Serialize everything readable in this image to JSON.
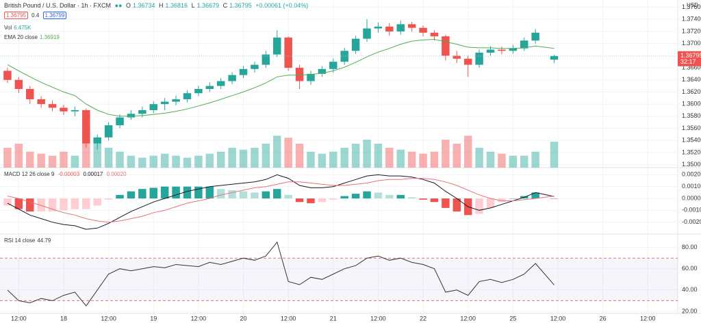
{
  "chart_data": [
    {
      "type": "candlestick",
      "title": "British Pound / U.S. Dollar · 1h · FXCM",
      "ohlc_legend": [
        "O",
        "1.36734",
        "H",
        "1.36816",
        "L",
        "1.36679",
        "C",
        "1.36795",
        "+0.00061 (+0.04%)"
      ],
      "symbol_boxes": [
        "1.36795",
        "0.4",
        "1.36799"
      ],
      "currency": "USD",
      "x": [
        -3,
        0,
        3,
        6,
        9,
        12,
        15,
        18,
        21,
        24,
        27,
        30,
        33,
        36,
        39,
        42,
        45,
        48,
        51,
        54,
        57,
        60,
        63,
        66,
        69,
        72,
        75,
        78,
        81,
        84,
        87,
        90,
        93,
        96,
        99,
        102,
        105,
        108,
        111,
        114,
        117,
        120,
        123,
        126,
        129,
        132,
        135,
        138,
        143
      ],
      "open": [
        1.3655,
        1.364,
        1.3625,
        1.3608,
        1.36,
        1.3594,
        1.3588,
        1.359,
        1.3535,
        1.3545,
        1.3565,
        1.3578,
        1.3584,
        1.359,
        1.36,
        1.3604,
        1.3608,
        1.3618,
        1.3625,
        1.363,
        1.3638,
        1.3648,
        1.3658,
        1.3665,
        1.3682,
        1.371,
        1.366,
        1.3638,
        1.365,
        1.3658,
        1.367,
        1.3688,
        1.3708,
        1.3725,
        1.3728,
        1.372,
        1.3732,
        1.3726,
        1.3718,
        1.3712,
        1.368,
        1.3675,
        1.3665,
        1.3685,
        1.369,
        1.3688,
        1.3692,
        1.3705,
        1.36734
      ],
      "high": [
        1.366,
        1.3645,
        1.363,
        1.3613,
        1.3606,
        1.3599,
        1.3596,
        1.3593,
        1.355,
        1.357,
        1.3583,
        1.359,
        1.3596,
        1.3605,
        1.361,
        1.3614,
        1.3623,
        1.363,
        1.3636,
        1.3643,
        1.3653,
        1.3663,
        1.367,
        1.3688,
        1.3722,
        1.3712,
        1.3665,
        1.3655,
        1.3663,
        1.3675,
        1.3693,
        1.3713,
        1.374,
        1.3735,
        1.3734,
        1.3738,
        1.3736,
        1.373,
        1.3722,
        1.3715,
        1.3688,
        1.368,
        1.369,
        1.3696,
        1.3695,
        1.3698,
        1.371,
        1.3724,
        1.36816
      ],
      "low": [
        1.3635,
        1.3618,
        1.36,
        1.3594,
        1.3588,
        1.3582,
        1.358,
        1.3528,
        1.3525,
        1.354,
        1.356,
        1.3574,
        1.3578,
        1.3585,
        1.359,
        1.3598,
        1.3603,
        1.3613,
        1.362,
        1.3625,
        1.3633,
        1.3643,
        1.3652,
        1.366,
        1.3678,
        1.3655,
        1.3625,
        1.3632,
        1.3645,
        1.3652,
        1.3665,
        1.3683,
        1.3703,
        1.3718,
        1.3713,
        1.3715,
        1.372,
        1.3712,
        1.3705,
        1.3672,
        1.3668,
        1.3645,
        1.366,
        1.368,
        1.3682,
        1.3683,
        1.3688,
        1.37,
        1.36679
      ],
      "close": [
        1.364,
        1.3625,
        1.3608,
        1.36,
        1.3594,
        1.3588,
        1.359,
        1.3535,
        1.3545,
        1.3565,
        1.3578,
        1.3584,
        1.359,
        1.36,
        1.3604,
        1.3608,
        1.3618,
        1.3625,
        1.363,
        1.3638,
        1.3648,
        1.3658,
        1.3665,
        1.3682,
        1.371,
        1.366,
        1.3638,
        1.365,
        1.3658,
        1.367,
        1.3688,
        1.3708,
        1.3725,
        1.3728,
        1.372,
        1.3732,
        1.3726,
        1.3718,
        1.3712,
        1.368,
        1.3675,
        1.3665,
        1.3685,
        1.369,
        1.3688,
        1.3692,
        1.3705,
        1.3718,
        1.36795
      ],
      "colors": {
        "up": "#26a69a",
        "down": "#ef5350"
      },
      "volume": {
        "name": "Vol",
        "last": "6.475K",
        "vlim": [
          0,
          12
        ],
        "values": [
          5,
          6,
          4,
          3.5,
          3,
          4,
          3,
          9.5,
          7,
          5,
          4,
          3,
          2.5,
          3,
          3.5,
          3,
          2.5,
          3,
          3.5,
          4,
          5,
          4.5,
          5,
          6,
          8,
          7.5,
          6,
          4,
          3.5,
          4,
          5,
          6,
          7,
          6,
          5,
          4.5,
          4,
          3.5,
          4,
          7,
          6,
          8,
          5,
          4,
          3.5,
          3,
          3,
          4,
          6.5
        ]
      },
      "ema": {
        "name": "EMA 20 close",
        "last": "1.36919",
        "color": "#4caf50",
        "values": [
          1.3665,
          1.3655,
          1.3645,
          1.3636,
          1.3628,
          1.362,
          1.3614,
          1.36,
          1.359,
          1.3583,
          1.358,
          1.358,
          1.3581,
          1.3583,
          1.3585,
          1.3588,
          1.3592,
          1.3597,
          1.3602,
          1.3608,
          1.3614,
          1.362,
          1.3627,
          1.3635,
          1.3645,
          1.3648,
          1.3648,
          1.3649,
          1.3651,
          1.3655,
          1.3661,
          1.3669,
          1.3678,
          1.3686,
          1.3692,
          1.3699,
          1.3704,
          1.3706,
          1.3707,
          1.3703,
          1.3699,
          1.3694,
          1.3693,
          1.3693,
          1.3692,
          1.3692,
          1.3693,
          1.3696,
          1.36919
        ]
      },
      "last_price": {
        "value": 1.36795,
        "label": "1.36795",
        "countdown": "32:17",
        "color": "#ef5350"
      },
      "ylim": [
        1.3495,
        1.3772
      ],
      "yticks": [
        {
          "value": 1.35,
          "label": "1.35000"
        },
        {
          "value": 1.352,
          "label": "1.35200"
        },
        {
          "value": 1.354,
          "label": "1.35400"
        },
        {
          "value": 1.356,
          "label": "1.35600"
        },
        {
          "value": 1.358,
          "label": "1.35800"
        },
        {
          "value": 1.36,
          "label": "1.36000"
        },
        {
          "value": 1.362,
          "label": "1.36200"
        },
        {
          "value": 1.364,
          "label": "1.36400"
        },
        {
          "value": 1.366,
          "label": "1.36600"
        },
        {
          "value": 1.37,
          "label": "1.37000"
        },
        {
          "value": 1.372,
          "label": "1.37200"
        },
        {
          "value": 1.374,
          "label": "1.37400"
        },
        {
          "value": 1.376,
          "label": "1.37600"
        }
      ],
      "xlim": [
        -5,
        176
      ],
      "xticks": [
        {
          "value": 0,
          "label": "12:00"
        },
        {
          "value": 12,
          "label": "18"
        },
        {
          "value": 24,
          "label": "12:00"
        },
        {
          "value": 36,
          "label": "19"
        },
        {
          "value": 48,
          "label": "12:00"
        },
        {
          "value": 60,
          "label": "20"
        },
        {
          "value": 72,
          "label": "12:00"
        },
        {
          "value": 84,
          "label": "21"
        },
        {
          "value": 96,
          "label": "12:00"
        },
        {
          "value": 108,
          "label": "22"
        },
        {
          "value": 120,
          "label": "12:00"
        },
        {
          "value": 132,
          "label": "25"
        },
        {
          "value": 144,
          "label": "12:00"
        },
        {
          "value": 156,
          "label": "26"
        },
        {
          "value": 168,
          "label": "12:00"
        }
      ],
      "grid": true
    },
    {
      "type": "macd",
      "title": "MACD 12 26 close 9",
      "legend_values": [
        "-0.00003",
        "0.00017",
        "0.00020"
      ],
      "macd": {
        "color": "#131722",
        "values": [
          -0.0004,
          -0.0009,
          -0.0014,
          -0.0017,
          -0.002,
          -0.0022,
          -0.0023,
          -0.0026,
          -0.0025,
          -0.0021,
          -0.0016,
          -0.0011,
          -0.0007,
          -0.0003,
          0.0,
          0.0003,
          0.0006,
          0.0008,
          0.001,
          0.0011,
          0.0012,
          0.0013,
          0.0014,
          0.0016,
          0.002,
          0.0017,
          0.0011,
          0.0009,
          0.0009,
          0.001,
          0.0013,
          0.0016,
          0.0019,
          0.002,
          0.0019,
          0.0019,
          0.0018,
          0.0016,
          0.0013,
          0.0006,
          0.0,
          -0.0007,
          -0.001,
          -0.0008,
          -0.0005,
          -0.0002,
          0.0001,
          0.0005,
          0.00017
        ]
      },
      "signal": {
        "color": "#e57373",
        "values": [
          0.0002,
          0.0,
          -0.0003,
          -0.0006,
          -0.0009,
          -0.0012,
          -0.0014,
          -0.0017,
          -0.0019,
          -0.002,
          -0.0019,
          -0.0017,
          -0.0015,
          -0.0012,
          -0.001,
          -0.0007,
          -0.0004,
          -0.0002,
          0.0,
          0.0003,
          0.0005,
          0.0007,
          0.0009,
          0.001,
          0.0012,
          0.0014,
          0.0014,
          0.0013,
          0.0012,
          0.0011,
          0.0011,
          0.0012,
          0.0013,
          0.0015,
          0.0016,
          0.0016,
          0.0017,
          0.0017,
          0.0016,
          0.0014,
          0.0011,
          0.0007,
          0.0003,
          0.0,
          -0.0002,
          -0.0002,
          -0.0001,
          0.0,
          0.0002
        ]
      },
      "histogram": {
        "colors": [
          "#26a69a",
          "#b2dfdb",
          "#ef5350",
          "#ffcdd2"
        ],
        "values": [
          -0.0006,
          -0.0009,
          -0.0011,
          -0.0011,
          -0.0011,
          -0.001,
          -0.0009,
          -0.0009,
          -0.0006,
          -0.0001,
          0.0003,
          0.0006,
          0.0008,
          0.0009,
          0.001,
          0.001,
          0.001,
          0.001,
          0.001,
          0.0008,
          0.0007,
          0.0006,
          0.0005,
          0.0006,
          0.0008,
          0.0003,
          -0.0003,
          -0.0004,
          -0.0003,
          -0.0001,
          0.0002,
          0.0004,
          0.0006,
          0.0005,
          0.0003,
          0.0003,
          0.0001,
          -0.0001,
          -0.0003,
          -0.0008,
          -0.0011,
          -0.0014,
          -0.0013,
          -0.0008,
          -0.0003,
          0.0,
          0.0002,
          0.0005,
          -3e-05
        ]
      },
      "ylim": [
        -0.003,
        0.00254
      ],
      "yticks": [
        {
          "value": 0.002,
          "label": "0.00200"
        },
        {
          "value": 0.001,
          "label": "0.00100"
        },
        {
          "value": 0,
          "label": "0.00000"
        },
        {
          "value": -0.001,
          "label": "-0.00100"
        },
        {
          "value": -0.002,
          "label": "-0.00200"
        }
      ],
      "grid": true
    },
    {
      "type": "rsi",
      "title": "RSI 14 close",
      "legend_value": "44.79",
      "color": "#333333",
      "values": [
        40,
        30,
        28,
        32,
        30,
        35,
        38,
        25,
        40,
        55,
        60,
        58,
        60,
        62,
        61,
        64,
        63,
        62,
        66,
        64,
        67,
        70,
        68,
        72,
        85,
        48,
        45,
        52,
        50,
        55,
        60,
        63,
        70,
        72,
        68,
        70,
        66,
        64,
        60,
        38,
        40,
        35,
        48,
        50,
        47,
        50,
        55,
        65,
        44.79
      ],
      "levels": [
        30,
        70
      ],
      "level_color": "#e57373",
      "band_color": "rgba(126,87,194,0.06)",
      "ylim": [
        18,
        92
      ],
      "yticks": [
        {
          "value": 20,
          "label": "20.00"
        },
        {
          "value": 40,
          "label": "40.00"
        },
        {
          "value": 60,
          "label": "60.00"
        },
        {
          "value": 80,
          "label": "80.00"
        }
      ],
      "grid": true
    }
  ]
}
